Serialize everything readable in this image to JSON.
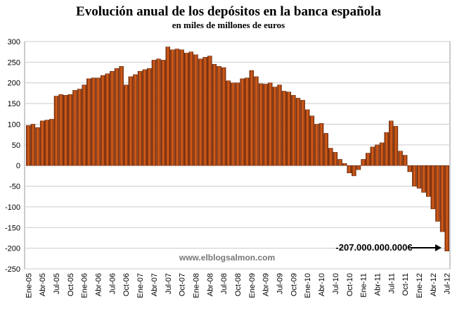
{
  "chart_data": {
    "type": "bar",
    "title": "Evolución anual de los depósitos en la banca española",
    "subtitle": "en miles de millones de euros",
    "categories": [
      "Ene-05",
      null,
      null,
      "Abr-05",
      null,
      null,
      "Jul-05",
      null,
      null,
      "Oct-05",
      null,
      null,
      "Ene-06",
      null,
      null,
      "Abr-06",
      null,
      null,
      "Jul-06",
      null,
      null,
      "Oct-06",
      null,
      null,
      "Ene-07",
      null,
      null,
      "Abr-07",
      null,
      null,
      "Jul-07",
      null,
      null,
      "Oct-07",
      null,
      null,
      "Ene-08",
      null,
      null,
      "Abr-08",
      null,
      null,
      "Jul-08",
      null,
      null,
      "Oct-08",
      null,
      null,
      "Ene-09",
      null,
      null,
      "Abr-09",
      null,
      null,
      "Jul-09",
      null,
      null,
      "Oct-09",
      null,
      null,
      "Ene-10",
      null,
      null,
      "Abr-10",
      null,
      null,
      "Jul-10",
      null,
      null,
      "Oct-10",
      null,
      null,
      "Ene-11",
      null,
      null,
      "Abr-11",
      null,
      null,
      "Jul-11",
      null,
      null,
      "Oct-11",
      null,
      null,
      "Ene-12",
      null,
      null,
      "Abr-12",
      null,
      null,
      "Jul-12"
    ],
    "values": [
      97,
      100,
      92,
      108,
      110,
      112,
      168,
      172,
      170,
      172,
      182,
      185,
      195,
      210,
      212,
      212,
      218,
      222,
      228,
      235,
      240,
      195,
      215,
      220,
      228,
      232,
      235,
      255,
      258,
      255,
      287,
      280,
      282,
      280,
      272,
      275,
      268,
      258,
      262,
      265,
      245,
      240,
      237,
      205,
      200,
      200,
      210,
      212,
      230,
      215,
      198,
      197,
      200,
      190,
      195,
      180,
      178,
      170,
      163,
      158,
      135,
      120,
      100,
      102,
      78,
      42,
      32,
      15,
      5,
      -18,
      -25,
      -10,
      15,
      30,
      45,
      50,
      55,
      80,
      108,
      95,
      35,
      25,
      -15,
      -50,
      -55,
      -65,
      -75,
      -105,
      -135,
      -160,
      -207
    ],
    "color": "#c24a12",
    "ylim": [
      -250,
      300
    ],
    "yticks": [
      -250,
      -200,
      -150,
      -100,
      -50,
      0,
      50,
      100,
      150,
      200,
      250,
      300
    ],
    "grid": true,
    "annotations": [
      "-207.000.000.000€",
      "www.elblogsalmon.com"
    ]
  }
}
